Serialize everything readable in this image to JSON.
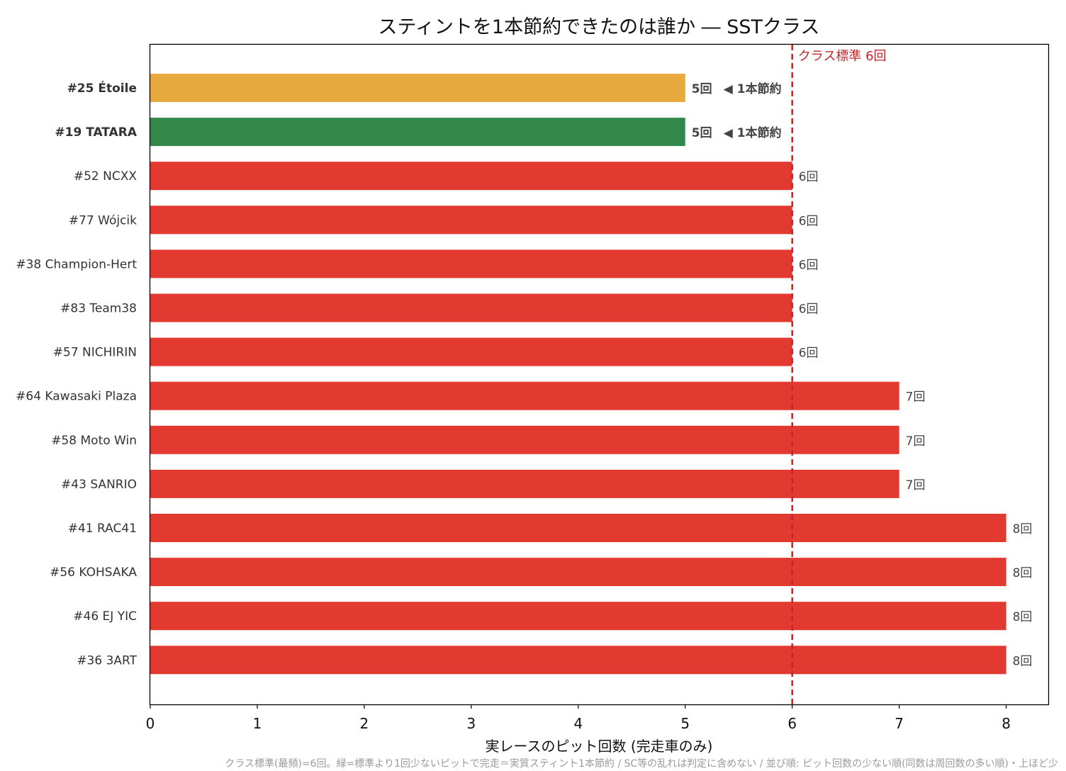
{
  "chart_data": {
    "type": "bar",
    "orientation": "horizontal",
    "title": "スティントを1本節約できたのは誰か ― SSTクラス",
    "xlabel": "実レースのピット回数 (完走車のみ)",
    "xlim": [
      0,
      8.4
    ],
    "xticks": [
      "0",
      "1",
      "2",
      "3",
      "4",
      "5",
      "6",
      "7",
      "8"
    ],
    "grid": false,
    "categories": [
      "#25 Étoile",
      "#19 TATARA",
      "#52 NCXX",
      "#77 Wójcik",
      "#38 Champion-Hert",
      "#83 Team38",
      "#57 NICHIRIN",
      "#64 Kawasaki Plaza",
      "#58 Moto Win",
      "#43 SANRIO",
      "#41 RAC41",
      "#56 KOHSAKA",
      "#46 EJ YIC",
      "#36 3ART"
    ],
    "values": [
      5,
      5,
      6,
      6,
      6,
      6,
      6,
      7,
      7,
      7,
      8,
      8,
      8,
      8
    ],
    "value_labels": [
      "5回",
      "5回",
      "6回",
      "6回",
      "6回",
      "6回",
      "6回",
      "7回",
      "7回",
      "7回",
      "8回",
      "8回",
      "8回",
      "8回"
    ],
    "save_note": "◀ 1本節約",
    "bar_colors": [
      "#e8aa3f",
      "#33884c",
      "#e23a31",
      "#e23a31",
      "#e23a31",
      "#e23a31",
      "#e23a31",
      "#e23a31",
      "#e23a31",
      "#e23a31",
      "#e23a31",
      "#e23a31",
      "#e23a31",
      "#e23a31"
    ],
    "label_colors": [
      "#c99218",
      "#333333",
      "#333333",
      "#333333",
      "#333333",
      "#333333",
      "#333333",
      "#333333",
      "#333333",
      "#333333",
      "#333333",
      "#333333",
      "#333333",
      "#333333"
    ],
    "label_bold": [
      true,
      true,
      false,
      false,
      false,
      false,
      false,
      false,
      false,
      false,
      false,
      false,
      false,
      false
    ],
    "save_color": "#1f7a3a",
    "reference_line": {
      "value": 6,
      "label": "クラス標準 6回",
      "color": "#c0272d",
      "style": "dashed"
    },
    "footnote": "クラス標準(最頻)=6回。緑=標準より1回少ないピットで完走＝実質スティント1本節約 / SC等の乱れは判定に含めない / 並び順: ピット回数の少ない順(同数は周回数の多い順)・上ほど少"
  }
}
